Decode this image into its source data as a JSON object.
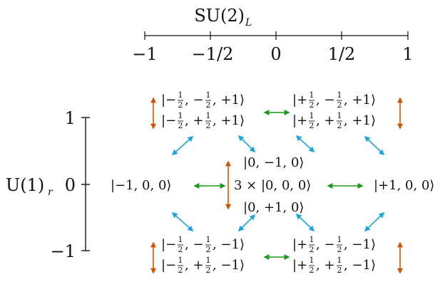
{
  "diagram": {
    "top_axis": {
      "label_main": "SU(2)",
      "label_sub": "L",
      "ticks": [
        "−1",
        "−1/2",
        "0",
        "1/2",
        "1"
      ]
    },
    "side_axis": {
      "label_main": "U(1)",
      "label_sub": "r",
      "ticks": [
        "1",
        "0",
        "−1"
      ]
    },
    "states": {
      "top_left_a": {
        "l": "|−",
        "n1": "1",
        "d1": "2",
        "m": ", −",
        "n2": "1",
        "d2": "2",
        "r": ", +1⟩"
      },
      "top_left_b": {
        "l": "|−",
        "n1": "1",
        "d1": "2",
        "m": ", +",
        "n2": "1",
        "d2": "2",
        "r": ", +1⟩"
      },
      "top_right_a": {
        "l": "|+",
        "n1": "1",
        "d1": "2",
        "m": ", −",
        "n2": "1",
        "d2": "2",
        "r": ", +1⟩"
      },
      "top_right_b": {
        "l": "|+",
        "n1": "1",
        "d1": "2",
        "m": ", +",
        "n2": "1",
        "d2": "2",
        "r": ", +1⟩"
      },
      "bot_left_a": {
        "l": "|−",
        "n1": "1",
        "d1": "2",
        "m": ", −",
        "n2": "1",
        "d2": "2",
        "r": ", −1⟩"
      },
      "bot_left_b": {
        "l": "|−",
        "n1": "1",
        "d1": "2",
        "m": ", +",
        "n2": "1",
        "d2": "2",
        "r": ", −1⟩"
      },
      "bot_right_a": {
        "l": "|+",
        "n1": "1",
        "d1": "2",
        "m": ", −",
        "n2": "1",
        "d2": "2",
        "r": ", −1⟩"
      },
      "bot_right_b": {
        "l": "|+",
        "n1": "1",
        "d1": "2",
        "m": ", +",
        "n2": "1",
        "d2": "2",
        "r": ", −1⟩"
      },
      "left_mid": "|−1, 0, 0⟩",
      "right_mid": "|+1, 0, 0⟩",
      "center": "3 × |0, 0, 0⟩",
      "center_up": "|0, −1, 0⟩",
      "center_down": "|0, +1, 0⟩"
    },
    "colors": {
      "orange": "#d35400",
      "green": "#1a9a1a",
      "cyan": "#1aa6dc",
      "black": "#111111"
    }
  }
}
